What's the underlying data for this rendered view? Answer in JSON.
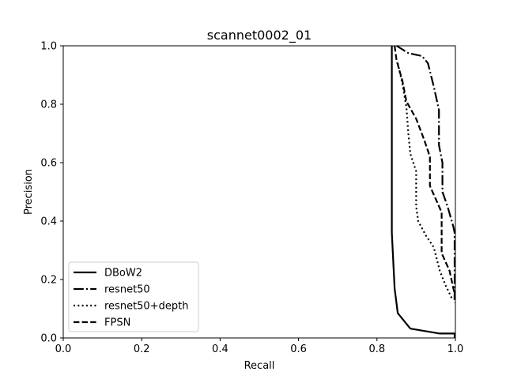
{
  "chart_data": {
    "type": "line",
    "title": "scannet0002_01",
    "xlabel": "Recall",
    "ylabel": "Precision",
    "xlim": [
      0.0,
      1.0
    ],
    "ylim": [
      0.0,
      1.0
    ],
    "xticks": [
      "0.0",
      "0.2",
      "0.4",
      "0.6",
      "0.8",
      "1.0"
    ],
    "yticks": [
      "0.0",
      "0.2",
      "0.4",
      "0.6",
      "0.8",
      "1.0"
    ],
    "grid": false,
    "legend_position": "lower-left",
    "series": [
      {
        "name": "DBoW2",
        "dash": "solid",
        "points": [
          [
            0.838,
            1.0
          ],
          [
            0.838,
            0.36
          ],
          [
            0.845,
            0.17
          ],
          [
            0.853,
            0.085
          ],
          [
            0.885,
            0.032
          ],
          [
            0.96,
            0.015
          ],
          [
            0.998,
            0.015
          ],
          [
            0.998,
            0.0
          ]
        ]
      },
      {
        "name": "resnet50",
        "dash": "dashdot",
        "points": [
          [
            0.85,
            1.0
          ],
          [
            0.88,
            0.975
          ],
          [
            0.915,
            0.965
          ],
          [
            0.93,
            0.94
          ],
          [
            0.945,
            0.86
          ],
          [
            0.958,
            0.78
          ],
          [
            0.958,
            0.66
          ],
          [
            0.967,
            0.6
          ],
          [
            0.967,
            0.5
          ],
          [
            0.98,
            0.45
          ],
          [
            0.995,
            0.38
          ],
          [
            0.998,
            0.36
          ],
          [
            0.998,
            0.13
          ]
        ]
      },
      {
        "name": "resnet50+depth",
        "dash": "dotted",
        "points": [
          [
            0.853,
            0.94
          ],
          [
            0.865,
            0.87
          ],
          [
            0.875,
            0.79
          ],
          [
            0.88,
            0.7
          ],
          [
            0.885,
            0.63
          ],
          [
            0.9,
            0.57
          ],
          [
            0.9,
            0.45
          ],
          [
            0.905,
            0.4
          ],
          [
            0.925,
            0.35
          ],
          [
            0.945,
            0.31
          ],
          [
            0.96,
            0.23
          ],
          [
            0.975,
            0.18
          ],
          [
            0.993,
            0.13
          ]
        ]
      },
      {
        "name": "FPSN",
        "dash": "dashed",
        "points": [
          [
            0.845,
            1.0
          ],
          [
            0.85,
            0.95
          ],
          [
            0.865,
            0.88
          ],
          [
            0.875,
            0.81
          ],
          [
            0.9,
            0.75
          ],
          [
            0.92,
            0.68
          ],
          [
            0.935,
            0.62
          ],
          [
            0.935,
            0.52
          ],
          [
            0.955,
            0.46
          ],
          [
            0.965,
            0.43
          ],
          [
            0.965,
            0.29
          ],
          [
            0.985,
            0.23
          ],
          [
            0.998,
            0.15
          ],
          [
            0.998,
            0.12
          ]
        ]
      }
    ]
  }
}
